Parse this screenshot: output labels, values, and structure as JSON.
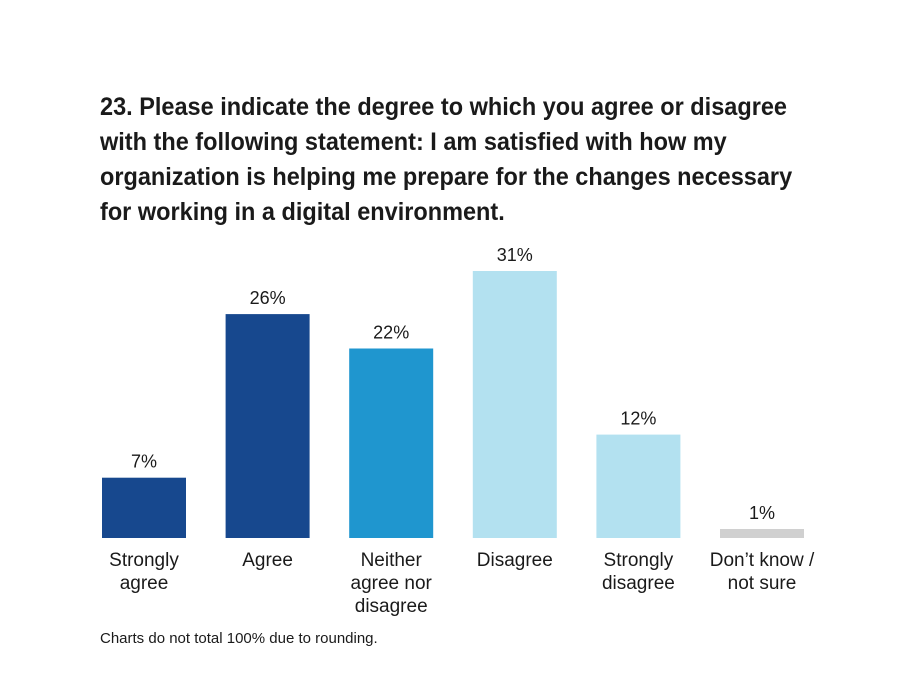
{
  "chart_data": {
    "type": "bar",
    "title": "23. Please indicate the degree to which you agree or disagree with the following statement: I am satisfied with how my organization is helping me prepare for the changes necessary for working in a digital environment.",
    "categories": [
      [
        "Strongly",
        "agree"
      ],
      [
        "Agree"
      ],
      [
        "Neither",
        "agree nor",
        "disagree"
      ],
      [
        "Disagree"
      ],
      [
        "Strongly",
        "disagree"
      ],
      [
        "Don’t know /",
        "not sure"
      ]
    ],
    "values": [
      7,
      26,
      22,
      31,
      12,
      1
    ],
    "value_labels": [
      "7%",
      "26%",
      "22%",
      "31%",
      "12%",
      "1%"
    ],
    "colors": [
      "#17488e",
      "#17488e",
      "#1f96cf",
      "#b3e1f0",
      "#b3e1f0",
      "#d0d0d0"
    ],
    "xlabel": "",
    "ylabel": "",
    "ylim": [
      0,
      31
    ],
    "grid": false
  },
  "footnote": "Charts do not total 100% due to rounding."
}
